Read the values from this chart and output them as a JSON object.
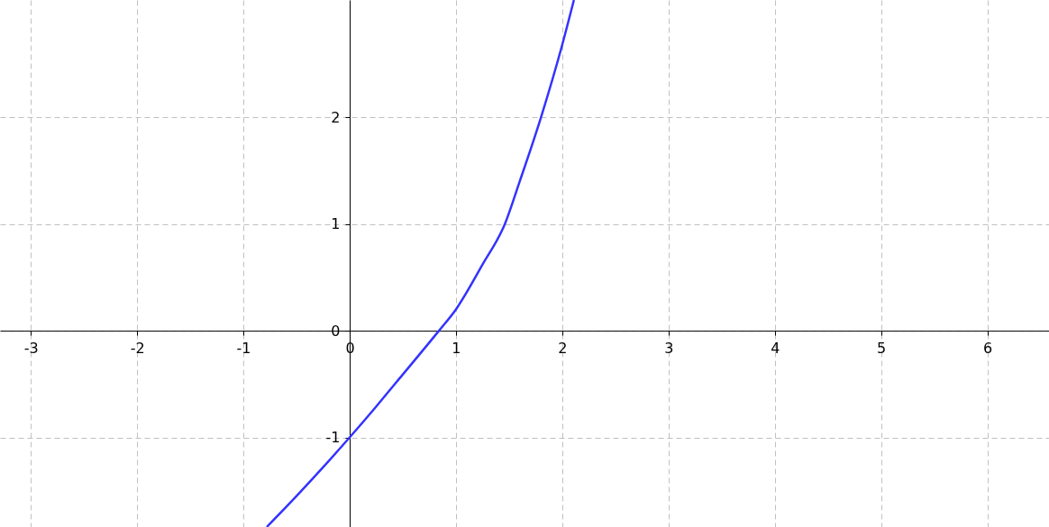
{
  "chart_data": {
    "type": "line",
    "x": [
      -0.78,
      -0.5,
      -0.25,
      0,
      0.25,
      0.5,
      0.84,
      1,
      1.25,
      1.46,
      1.6,
      1.8,
      2,
      2.11
    ],
    "series": [
      {
        "color": "#3333ff",
        "values": [
          -1.84,
          -1.55,
          -1.28,
          -1,
          -0.71,
          -0.41,
          0,
          0.2,
          0.62,
          1,
          1.4,
          2,
          2.68,
          3.1
        ]
      }
    ],
    "xlim": [
      -3.29,
      6.58
    ],
    "ylim": [
      -1.84,
      3.1
    ],
    "xticks": [
      -3,
      -2,
      -1,
      0,
      1,
      2,
      3,
      4,
      5,
      6
    ],
    "yticks": [
      -1,
      0,
      1,
      2
    ],
    "grid": true,
    "marker": "none",
    "line_style": "solid"
  }
}
